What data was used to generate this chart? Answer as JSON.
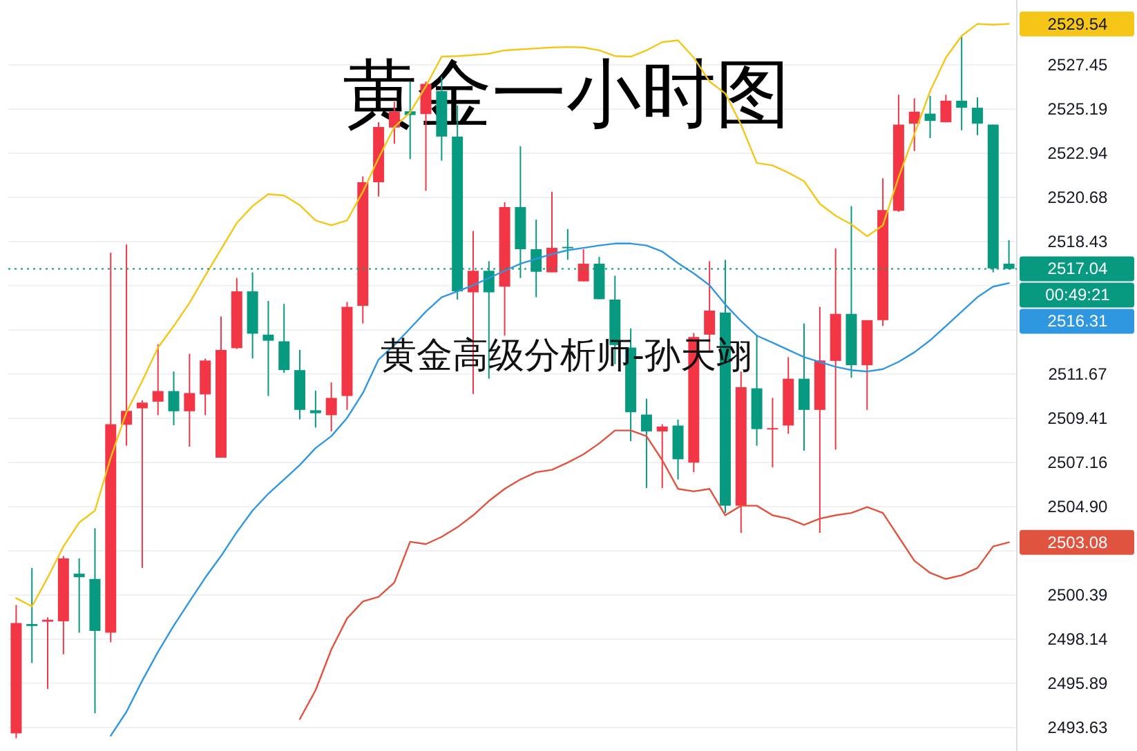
{
  "chart_data": {
    "type": "candlestick",
    "title": "黄金一小时图",
    "categories": [
      null,
      null,
      null,
      null,
      null,
      null,
      null,
      null,
      null,
      null,
      null,
      null,
      null,
      null,
      null,
      null,
      null,
      null,
      null,
      null,
      null,
      null,
      null,
      null,
      null,
      null,
      null,
      null,
      null,
      null,
      null,
      null,
      null,
      null,
      null,
      null,
      null,
      null,
      null,
      null,
      null,
      null,
      null,
      null,
      null,
      null,
      null,
      null,
      null,
      null,
      null,
      null,
      null,
      null,
      null,
      null,
      null,
      null,
      null,
      null,
      null,
      null,
      null,
      null
    ],
    "ohlc": [
      [
        2493.33,
        2499.88,
        2493.08,
        2498.96
      ],
      [
        2498.91,
        2501.77,
        2496.92,
        2498.81
      ],
      [
        2499.03,
        2499.25,
        2495.6,
        2499.13
      ],
      [
        2499.05,
        2502.38,
        2497.37,
        2502.26
      ],
      [
        2501.48,
        2502.26,
        2498.47,
        2501.3
      ],
      [
        2501.21,
        2503.8,
        2494.36,
        2498.56
      ],
      [
        2498.47,
        2517.87,
        2497.98,
        2509.11
      ],
      [
        2509.08,
        2518.28,
        2508.01,
        2509.79
      ],
      [
        2509.92,
        2510.33,
        2501.77,
        2510.21
      ],
      [
        2510.26,
        2513.19,
        2509.57,
        2510.8
      ],
      [
        2510.8,
        2511.8,
        2509.06,
        2509.77
      ],
      [
        2509.77,
        2512.7,
        2507.96,
        2510.7
      ],
      [
        2510.63,
        2512.46,
        2509.57,
        2512.36
      ],
      [
        2507.4,
        2514.61,
        2507.4,
        2512.9
      ],
      [
        2512.99,
        2516.57,
        2512.95,
        2515.89
      ],
      [
        2515.89,
        2516.86,
        2512.46,
        2513.73
      ],
      [
        2513.68,
        2515.4,
        2510.55,
        2513.37
      ],
      [
        2513.34,
        2515.25,
        2511.73,
        2511.87
      ],
      [
        2511.87,
        2512.9,
        2509.35,
        2509.84
      ],
      [
        2509.82,
        2510.82,
        2508.94,
        2509.67
      ],
      [
        2509.57,
        2511.24,
        2508.74,
        2510.45
      ],
      [
        2510.55,
        2515.35,
        2509.84,
        2515.1
      ],
      [
        2515.15,
        2521.76,
        2514.25,
        2521.46
      ],
      [
        2521.46,
        2524.52,
        2520.73,
        2524.28
      ],
      [
        2524.25,
        2525.57,
        2523.42,
        2525.06
      ],
      [
        2525.08,
        2526.6,
        2522.64,
        2524.89
      ],
      [
        2524.94,
        2526.6,
        2521.02,
        2526.48
      ],
      [
        2526.11,
        2526.85,
        2522.56,
        2523.79
      ],
      [
        2523.79,
        2525.38,
        2515.47,
        2515.89
      ],
      [
        2515.84,
        2518.97,
        2510.65,
        2516.94
      ],
      [
        2516.94,
        2517.43,
        2511.43,
        2515.84
      ],
      [
        2516.13,
        2520.44,
        2513.63,
        2520.19
      ],
      [
        2520.19,
        2523.3,
        2516.57,
        2518.04
      ],
      [
        2518.04,
        2519.55,
        2515.59,
        2516.89
      ],
      [
        2516.86,
        2520.97,
        2516.86,
        2518.11
      ],
      [
        2518.16,
        2519.07,
        2517.5,
        2518.09
      ],
      [
        2516.4,
        2518.04,
        2516.4,
        2517.3
      ],
      [
        2517.3,
        2517.65,
        2515.49,
        2515.49
      ],
      [
        2515.47,
        2516.69,
        2512.17,
        2513.15
      ],
      [
        2513.02,
        2514.0,
        2508.25,
        2509.72
      ],
      [
        2509.6,
        2510.41,
        2505.85,
        2508.74
      ],
      [
        2508.74,
        2509.11,
        2505.85,
        2508.99
      ],
      [
        2509.04,
        2509.35,
        2506.29,
        2507.32
      ],
      [
        2507.15,
        2513.76,
        2506.66,
        2513.56
      ],
      [
        2513.68,
        2517.43,
        2512.78,
        2514.91
      ],
      [
        2514.81,
        2517.5,
        2504.58,
        2504.95
      ],
      [
        2504.95,
        2511.8,
        2503.56,
        2511.0
      ],
      [
        2510.94,
        2513.68,
        2508.01,
        2508.86
      ],
      [
        2508.84,
        2510.45,
        2506.91,
        2508.91
      ],
      [
        2509.04,
        2512.53,
        2508.62,
        2511.43
      ],
      [
        2511.43,
        2514.25,
        2507.76,
        2509.84
      ],
      [
        2509.84,
        2515.1,
        2503.56,
        2512.36
      ],
      [
        2512.34,
        2518.09,
        2507.81,
        2514.74
      ],
      [
        2514.74,
        2520.24,
        2511.48,
        2512.12
      ],
      [
        2512.12,
        2514.42,
        2509.84,
        2514.42
      ],
      [
        2514.42,
        2521.66,
        2514.12,
        2520.04
      ],
      [
        2520.0,
        2525.92,
        2519.95,
        2524.4
      ],
      [
        2524.45,
        2525.74,
        2523.05,
        2525.06
      ],
      [
        2524.96,
        2525.87,
        2523.71,
        2524.59
      ],
      [
        2524.52,
        2525.92,
        2524.52,
        2525.62
      ],
      [
        2525.62,
        2528.93,
        2524.11,
        2525.26
      ],
      [
        2525.26,
        2525.79,
        2523.86,
        2524.45
      ],
      [
        2524.4,
        2524.4,
        2516.86,
        2517.06
      ],
      [
        2517.3,
        2518.5,
        2517.0,
        2517.04
      ]
    ],
    "colors": [
      "#f23645",
      "#089981",
      "#f23645",
      "#f23645",
      "#089981",
      "#089981",
      "#f23645",
      "#f23645",
      "#f23645",
      "#f23645",
      "#089981",
      "#f23645",
      "#f23645",
      "#f23645",
      "#f23645",
      "#089981",
      "#089981",
      "#089981",
      "#089981",
      "#089981",
      "#f23645",
      "#f23645",
      "#f23645",
      "#f23645",
      "#f23645",
      "#089981",
      "#f23645",
      "#089981",
      "#089981",
      "#f23645",
      "#089981",
      "#f23645",
      "#089981",
      "#089981",
      "#f23645",
      "#089981",
      "#f23645",
      "#089981",
      "#089981",
      "#089981",
      "#089981",
      "#f23645",
      "#089981",
      "#f23645",
      "#f23645",
      "#089981",
      "#f23645",
      "#089981",
      "#f23645",
      "#f23645",
      "#089981",
      "#f23645",
      "#f23645",
      "#089981",
      "#f23645",
      "#f23645",
      "#f23645",
      "#f23645",
      "#089981",
      "#f23645",
      "#089981",
      "#089981",
      "#089981",
      "#089981"
    ],
    "series": [
      {
        "type": "line",
        "color": "#f5c518",
        "values": [
          2500.23,
          2499.81,
          2501.28,
          2502.87,
          2504.09,
          2504.7,
          2507.4,
          2509.72,
          2511.31,
          2513.02,
          2514.12,
          2515.3,
          2516.69,
          2518.04,
          2519.38,
          2520.24,
          2520.85,
          2520.78,
          2520.29,
          2519.51,
          2519.26,
          2519.51,
          2520.97,
          2522.69,
          2524.28,
          2525.01,
          2526.36,
          2527.87,
          2527.9,
          2527.95,
          2528.02,
          2528.19,
          2528.24,
          2528.29,
          2528.34,
          2528.36,
          2528.34,
          2528.19,
          2527.9,
          2527.87,
          2528.19,
          2528.61,
          2528.7,
          2527.82,
          2526.6,
          2525.99,
          2524.4,
          2522.44,
          2522.32,
          2521.95,
          2521.51,
          2520.36,
          2519.75,
          2519.31,
          2518.7,
          2519.26,
          2521.71,
          2523.91,
          2526.11,
          2527.82,
          2528.93,
          2529.54,
          2529.5,
          2529.54
        ]
      },
      {
        "type": "line",
        "color": "#2f96e0",
        "values": [
          null,
          null,
          null,
          null,
          null,
          null,
          2493.21,
          2494.43,
          2496.02,
          2497.49,
          2498.83,
          2500.06,
          2501.28,
          2502.38,
          2503.6,
          2504.7,
          2505.56,
          2506.29,
          2507.03,
          2507.89,
          2508.5,
          2509.43,
          2510.7,
          2512.41,
          2513.15,
          2514.0,
          2514.86,
          2515.59,
          2515.89,
          2516.2,
          2516.57,
          2516.94,
          2517.3,
          2517.55,
          2517.79,
          2517.99,
          2518.11,
          2518.23,
          2518.33,
          2518.33,
          2518.23,
          2517.92,
          2517.33,
          2516.81,
          2516.2,
          2515.22,
          2514.37,
          2513.63,
          2513.27,
          2512.9,
          2512.53,
          2512.29,
          2512.04,
          2511.87,
          2511.8,
          2511.92,
          2512.29,
          2512.78,
          2513.39,
          2514.12,
          2514.86,
          2515.59,
          2516.13,
          2516.31
        ]
      },
      {
        "type": "line",
        "color": "#e0533f",
        "values": [
          null,
          null,
          null,
          null,
          null,
          null,
          null,
          null,
          null,
          null,
          null,
          null,
          null,
          null,
          null,
          null,
          null,
          null,
          2494.06,
          2495.53,
          2497.61,
          2499.2,
          2500.06,
          2500.3,
          2501.03,
          2503.11,
          2502.99,
          2503.36,
          2503.85,
          2504.46,
          2505.19,
          2505.81,
          2506.29,
          2506.66,
          2506.78,
          2507.15,
          2507.57,
          2508.13,
          2508.79,
          2508.79,
          2508.5,
          2507.27,
          2505.81,
          2505.68,
          2505.81,
          2504.46,
          2504.95,
          2504.95,
          2504.46,
          2504.29,
          2503.97,
          2504.29,
          2504.46,
          2504.58,
          2504.88,
          2504.58,
          2503.36,
          2502.14,
          2501.52,
          2501.21,
          2501.4,
          2501.77,
          2502.87,
          2503.08
        ]
      }
    ],
    "ylim": [
      2492.43,
      2530.76
    ],
    "yticks": [
      2527.45,
      2525.19,
      2522.94,
      2520.68,
      2518.43,
      {
        "value": 2516.18,
        "label": null
      },
      {
        "value": 2513.92,
        "label": null
      },
      2511.67,
      2509.41,
      2507.16,
      {
        "value": 2504.9,
        "label": "2504.90"
      },
      {
        "value": 2502.65,
        "label": null
      },
      2500.39,
      2498.14,
      2495.89,
      2493.63
    ],
    "tick_labels": "y",
    "grid": "y",
    "ref_lines": [
      {
        "axis": "y",
        "value": 2517.04,
        "label": "2517.04",
        "color": "#089981",
        "line_style": "dotted"
      }
    ],
    "annotations": [
      "黄金高级分析师-孙天翊",
      "00:49:21",
      "2529.54",
      "2516.31",
      "2503.08"
    ]
  }
}
